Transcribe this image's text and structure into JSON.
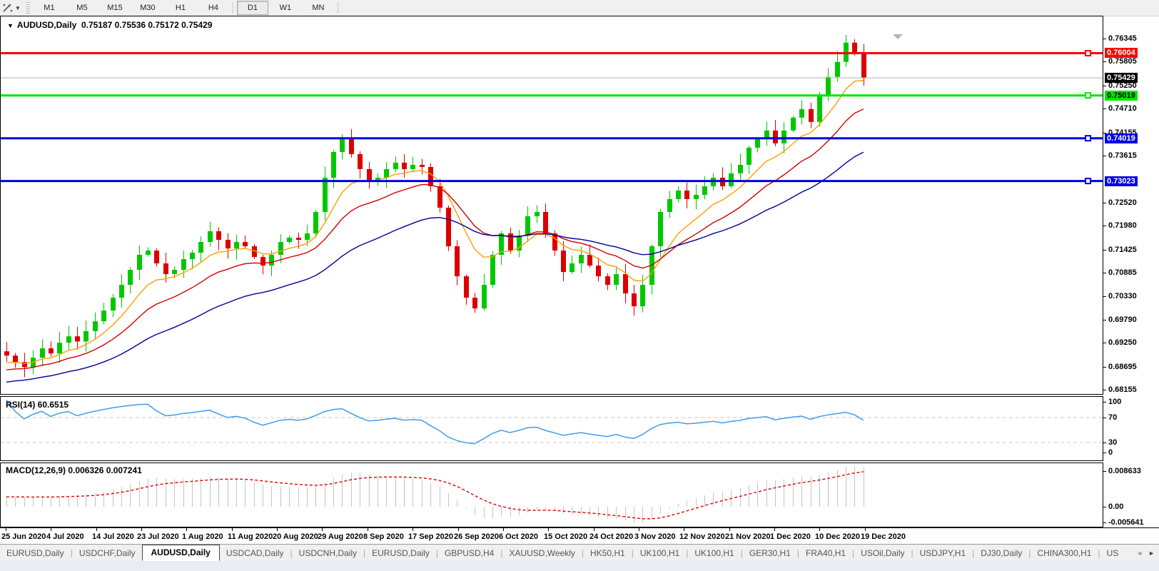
{
  "toolbar": {
    "timeframes": [
      {
        "label": "M1",
        "active": false
      },
      {
        "label": "M5",
        "active": false
      },
      {
        "label": "M15",
        "active": false
      },
      {
        "label": "M30",
        "active": false
      },
      {
        "label": "H1",
        "active": false
      },
      {
        "label": "H4",
        "active": false
      },
      {
        "label": "D1",
        "active": true
      },
      {
        "label": "W1",
        "active": false
      },
      {
        "label": "MN",
        "active": false
      }
    ]
  },
  "chart": {
    "title_symbol": "AUDUSD,Daily",
    "ohlc_text": "0.75187 0.75536 0.75172 0.75429"
  },
  "rsi": {
    "label_text": "RSI(14) 60.6515",
    "period": 14,
    "value": "60.6515",
    "axis_labels": [
      "100",
      "70",
      "30",
      "0"
    ],
    "guide_levels": [
      70,
      30
    ],
    "line_color": "#3e9eea"
  },
  "macd": {
    "label_text": "MACD(12,26,9) 0.006326 0.007241",
    "params": "12,26,9",
    "main_value": "0.006326",
    "signal_value": "0.007241",
    "axis_labels": [
      "0.008633",
      "0.00",
      "-0.005641"
    ],
    "axis_values": [
      0.008633,
      0.0,
      -0.005641
    ],
    "hist_color": "#c4c4c4",
    "signal_color": "#e00000"
  },
  "price_axis": {
    "ticks": [
      "0.76345",
      "0.75805",
      "0.75250",
      "0.74710",
      "0.74155",
      "0.73615",
      "0.72520",
      "0.71980",
      "0.71425",
      "0.70885",
      "0.70330",
      "0.69790",
      "0.69250",
      "0.68695",
      "0.68155"
    ],
    "badges": [
      {
        "text": "0.76004",
        "bg": "#ff0000",
        "fg": "#ffffff"
      },
      {
        "text": "0.75429",
        "bg": "#000000",
        "fg": "#ffffff"
      },
      {
        "text": "0.75019",
        "bg": "#00e600",
        "fg": "#000000"
      },
      {
        "text": "0.74019",
        "bg": "#0000e6",
        "fg": "#ffffff"
      },
      {
        "text": "0.73023",
        "bg": "#0000e6",
        "fg": "#ffffff"
      }
    ]
  },
  "chart_data": {
    "type": "candlestick",
    "symbol": "AUDUSD",
    "timeframe": "Daily",
    "last_bar_ohlc": {
      "open": 0.75187,
      "high": 0.75536,
      "low": 0.75172,
      "close": 0.75429
    },
    "price_range": [
      0.68155,
      0.76345
    ],
    "closes": [
      0.6895,
      0.688,
      0.6868,
      0.689,
      0.6912,
      0.69,
      0.6925,
      0.694,
      0.6928,
      0.6952,
      0.6975,
      0.7,
      0.703,
      0.706,
      0.7095,
      0.713,
      0.714,
      0.711,
      0.7085,
      0.7095,
      0.712,
      0.7135,
      0.716,
      0.7185,
      0.7165,
      0.7145,
      0.716,
      0.715,
      0.7125,
      0.7105,
      0.713,
      0.716,
      0.717,
      0.7165,
      0.718,
      0.723,
      0.731,
      0.737,
      0.74,
      0.7365,
      0.733,
      0.73,
      0.731,
      0.733,
      0.7345,
      0.733,
      0.734,
      0.7335,
      0.729,
      0.724,
      0.715,
      0.708,
      0.703,
      0.7005,
      0.706,
      0.713,
      0.718,
      0.714,
      0.7175,
      0.722,
      0.723,
      0.718,
      0.714,
      0.709,
      0.711,
      0.713,
      0.7105,
      0.708,
      0.706,
      0.7085,
      0.704,
      0.701,
      0.706,
      0.715,
      0.723,
      0.726,
      0.728,
      0.726,
      0.727,
      0.729,
      0.731,
      0.729,
      0.732,
      0.734,
      0.738,
      0.74,
      0.742,
      0.739,
      0.742,
      0.745,
      0.747,
      0.744,
      0.75,
      0.7545,
      0.758,
      0.7625,
      0.76,
      0.75429
    ],
    "up_color": "#00c800",
    "down_color": "#dd0000",
    "moving_averages": [
      {
        "name": "fast",
        "period": 8,
        "color": "#ff9e00"
      },
      {
        "name": "medium",
        "period": 16,
        "color": "#d40000"
      },
      {
        "name": "slow",
        "period": 34,
        "color": "#000099"
      }
    ],
    "levels": [
      {
        "price": 0.76004,
        "color": "#ff0000",
        "width": 3,
        "kind": "resistance"
      },
      {
        "price": 0.75019,
        "color": "#00e600",
        "width": 3,
        "kind": "support"
      },
      {
        "price": 0.74019,
        "color": "#0000e6",
        "width": 3,
        "kind": "support"
      },
      {
        "price": 0.73023,
        "color": "#0000e6",
        "width": 3,
        "kind": "support"
      },
      {
        "price": 0.75429,
        "color": "#b4b4b4",
        "width": 1,
        "kind": "current-price"
      }
    ],
    "x_labels": [
      "25 Jun 2020",
      "4 Jul 2020",
      "14 Jul 2020",
      "23 Jul 2020",
      "1 Aug 2020",
      "11 Aug 2020",
      "20 Aug 2020",
      "29 Aug 2020",
      "8 Sep 2020",
      "17 Sep 2020",
      "26 Sep 2020",
      "6 Oct 2020",
      "15 Oct 2020",
      "24 Oct 2020",
      "3 Nov 2020",
      "12 Nov 2020",
      "21 Nov 2020",
      "1 Dec 2020",
      "10 Dec 2020",
      "19 Dec 2020"
    ]
  },
  "tabs": {
    "items": [
      {
        "label": "EURUSD,Daily",
        "active": false
      },
      {
        "label": "USDCHF,Daily",
        "active": false
      },
      {
        "label": "AUDUSD,Daily",
        "active": true
      },
      {
        "label": "USDCAD,Daily",
        "active": false
      },
      {
        "label": "USDCNH,Daily",
        "active": false
      },
      {
        "label": "EURUSD,Daily",
        "active": false
      },
      {
        "label": "GBPUSD,H4",
        "active": false
      },
      {
        "label": "XAUUSD,Weekly",
        "active": false
      },
      {
        "label": "HK50,H1",
        "active": false
      },
      {
        "label": "UK100,H1",
        "active": false
      },
      {
        "label": "UK100,H1",
        "active": false
      },
      {
        "label": "GER30,H1",
        "active": false
      },
      {
        "label": "FRA40,H1",
        "active": false
      },
      {
        "label": "USOil,Daily",
        "active": false
      },
      {
        "label": "USDJPY,H1",
        "active": false
      },
      {
        "label": "DJ30,Daily",
        "active": false
      },
      {
        "label": "CHINA300,H1",
        "active": false
      },
      {
        "label": "US",
        "active": false
      }
    ],
    "scroll_left": "◄",
    "scroll_right": "►"
  }
}
